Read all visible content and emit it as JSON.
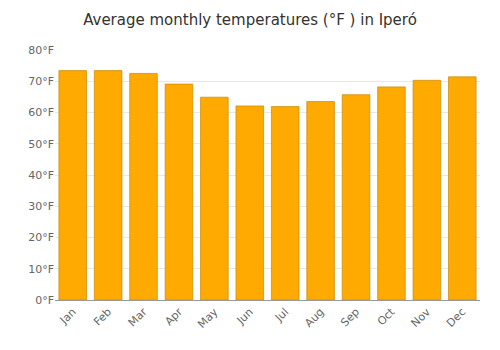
{
  "chart_data": {
    "type": "bar",
    "title": "Average monthly temperatures (°F ) in Iperó",
    "categories": [
      "Jan",
      "Feb",
      "Mar",
      "Apr",
      "May",
      "Jun",
      "Jul",
      "Aug",
      "Sep",
      "Oct",
      "Nov",
      "Dec"
    ],
    "values": [
      73.4,
      73.4,
      72.5,
      69.1,
      64.9,
      62.1,
      61.9,
      63.5,
      65.7,
      68.2,
      70.3,
      71.4
    ],
    "color": "#FFAA00",
    "ylim": [
      0,
      80
    ],
    "yticks": [
      {
        "value": 0,
        "label": "0°F"
      },
      {
        "value": 10,
        "label": "10°F"
      },
      {
        "value": 20,
        "label": "20°F"
      },
      {
        "value": 30,
        "label": "30°F"
      },
      {
        "value": 40,
        "label": "40°F"
      },
      {
        "value": 50,
        "label": "50°F"
      },
      {
        "value": 60,
        "label": "60°F"
      },
      {
        "value": 70,
        "label": "70°F"
      },
      {
        "value": 80,
        "label": "80°F"
      }
    ],
    "grid": true
  }
}
